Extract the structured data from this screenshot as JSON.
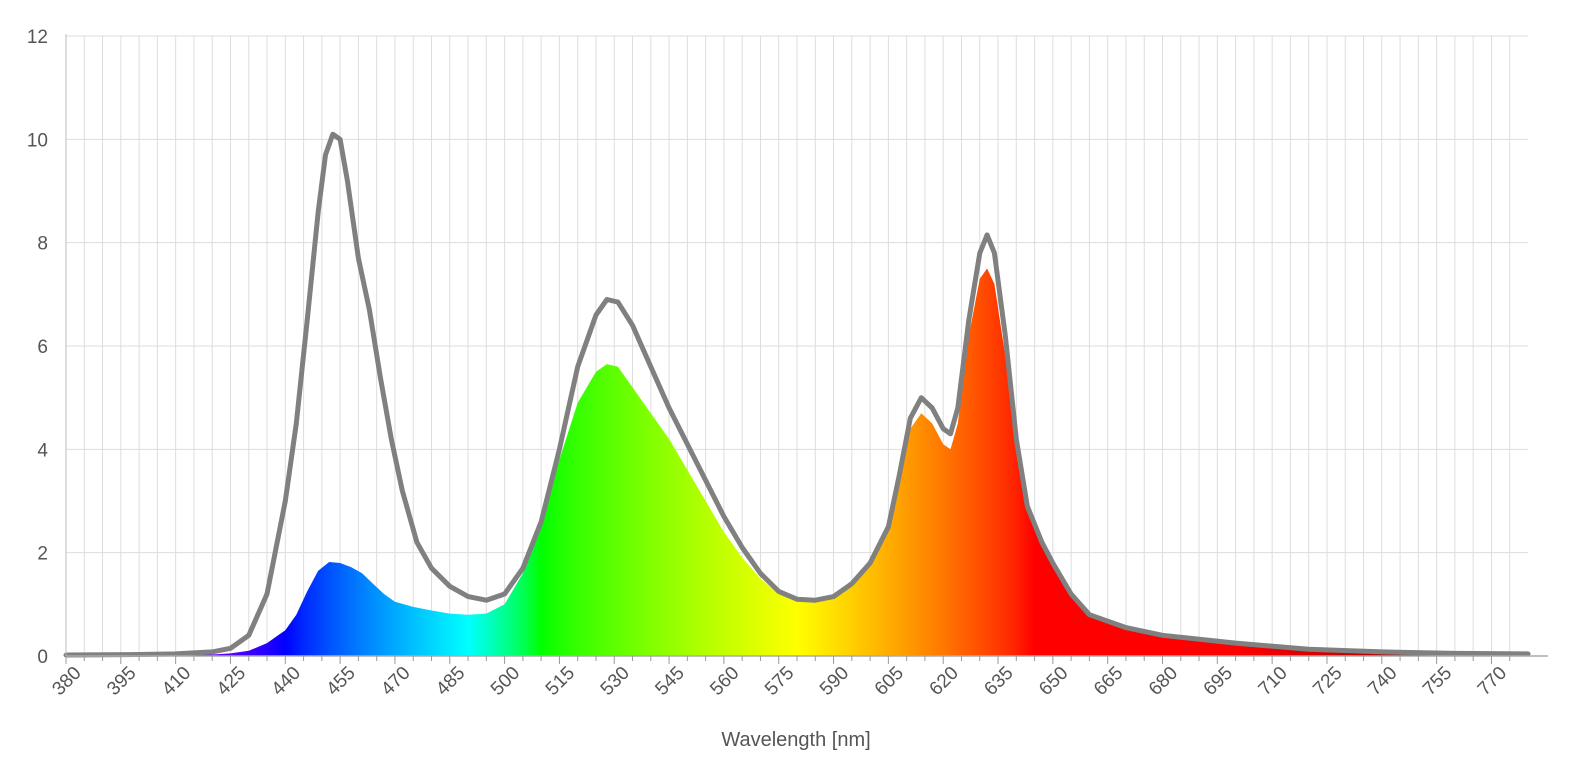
{
  "chart_data": {
    "type": "area",
    "xlabel": "Wavelength [nm]",
    "ylabel": "",
    "xlim": [
      380,
      780
    ],
    "ylim": [
      0,
      12
    ],
    "grid": true,
    "legend": "none",
    "x_ticks": [
      "380",
      "395",
      "410",
      "425",
      "440",
      "455",
      "470",
      "485",
      "500",
      "515",
      "530",
      "545",
      "560",
      "575",
      "590",
      "605",
      "620",
      "635",
      "650",
      "665",
      "680",
      "695",
      "710",
      "725",
      "740",
      "755",
      "770"
    ],
    "y_ticks": [
      "0",
      "2",
      "4",
      "6",
      "8",
      "10",
      "12"
    ],
    "series": [
      {
        "kind": "line",
        "color": "#808080",
        "points": [
          [
            380,
            0.02
          ],
          [
            400,
            0.03
          ],
          [
            410,
            0.04
          ],
          [
            420,
            0.08
          ],
          [
            425,
            0.15
          ],
          [
            430,
            0.4
          ],
          [
            435,
            1.2
          ],
          [
            440,
            3.0
          ],
          [
            443,
            4.5
          ],
          [
            446,
            6.5
          ],
          [
            449,
            8.6
          ],
          [
            451,
            9.7
          ],
          [
            453,
            10.1
          ],
          [
            455,
            10.0
          ],
          [
            457,
            9.2
          ],
          [
            460,
            7.7
          ],
          [
            463,
            6.7
          ],
          [
            466,
            5.4
          ],
          [
            469,
            4.2
          ],
          [
            472,
            3.2
          ],
          [
            476,
            2.2
          ],
          [
            480,
            1.7
          ],
          [
            485,
            1.35
          ],
          [
            490,
            1.15
          ],
          [
            495,
            1.08
          ],
          [
            500,
            1.2
          ],
          [
            505,
            1.7
          ],
          [
            510,
            2.6
          ],
          [
            515,
            4.0
          ],
          [
            520,
            5.6
          ],
          [
            525,
            6.6
          ],
          [
            528,
            6.9
          ],
          [
            531,
            6.85
          ],
          [
            535,
            6.4
          ],
          [
            540,
            5.6
          ],
          [
            545,
            4.8
          ],
          [
            550,
            4.1
          ],
          [
            555,
            3.4
          ],
          [
            560,
            2.7
          ],
          [
            565,
            2.1
          ],
          [
            570,
            1.6
          ],
          [
            575,
            1.25
          ],
          [
            580,
            1.1
          ],
          [
            585,
            1.08
          ],
          [
            590,
            1.15
          ],
          [
            595,
            1.4
          ],
          [
            600,
            1.8
          ],
          [
            605,
            2.5
          ],
          [
            608,
            3.5
          ],
          [
            611,
            4.6
          ],
          [
            614,
            5.0
          ],
          [
            617,
            4.8
          ],
          [
            620,
            4.4
          ],
          [
            622,
            4.3
          ],
          [
            624,
            4.8
          ],
          [
            627,
            6.5
          ],
          [
            630,
            7.8
          ],
          [
            632,
            8.15
          ],
          [
            634,
            7.8
          ],
          [
            637,
            6.2
          ],
          [
            640,
            4.2
          ],
          [
            643,
            2.9
          ],
          [
            647,
            2.2
          ],
          [
            650,
            1.8
          ],
          [
            655,
            1.2
          ],
          [
            660,
            0.8
          ],
          [
            670,
            0.55
          ],
          [
            680,
            0.4
          ],
          [
            700,
            0.25
          ],
          [
            720,
            0.13
          ],
          [
            740,
            0.08
          ],
          [
            760,
            0.05
          ],
          [
            780,
            0.04
          ]
        ]
      },
      {
        "kind": "spectrum-area",
        "points": [
          [
            380,
            0.02
          ],
          [
            400,
            0.02
          ],
          [
            410,
            0.02
          ],
          [
            420,
            0.03
          ],
          [
            425,
            0.05
          ],
          [
            430,
            0.1
          ],
          [
            435,
            0.25
          ],
          [
            440,
            0.5
          ],
          [
            443,
            0.8
          ],
          [
            446,
            1.25
          ],
          [
            449,
            1.65
          ],
          [
            452,
            1.82
          ],
          [
            455,
            1.8
          ],
          [
            458,
            1.72
          ],
          [
            461,
            1.6
          ],
          [
            464,
            1.4
          ],
          [
            467,
            1.2
          ],
          [
            470,
            1.05
          ],
          [
            475,
            0.95
          ],
          [
            480,
            0.88
          ],
          [
            485,
            0.82
          ],
          [
            490,
            0.8
          ],
          [
            495,
            0.82
          ],
          [
            500,
            1.0
          ],
          [
            505,
            1.6
          ],
          [
            510,
            2.6
          ],
          [
            515,
            3.8
          ],
          [
            520,
            4.9
          ],
          [
            525,
            5.5
          ],
          [
            528,
            5.65
          ],
          [
            531,
            5.6
          ],
          [
            535,
            5.2
          ],
          [
            540,
            4.7
          ],
          [
            545,
            4.2
          ],
          [
            550,
            3.6
          ],
          [
            555,
            3.0
          ],
          [
            560,
            2.4
          ],
          [
            565,
            1.9
          ],
          [
            570,
            1.5
          ],
          [
            575,
            1.2
          ],
          [
            580,
            1.08
          ],
          [
            585,
            1.07
          ],
          [
            590,
            1.12
          ],
          [
            595,
            1.35
          ],
          [
            600,
            1.75
          ],
          [
            605,
            2.4
          ],
          [
            608,
            3.4
          ],
          [
            611,
            4.4
          ],
          [
            614,
            4.7
          ],
          [
            617,
            4.5
          ],
          [
            620,
            4.1
          ],
          [
            622,
            4.0
          ],
          [
            624,
            4.5
          ],
          [
            627,
            6.2
          ],
          [
            630,
            7.3
          ],
          [
            632,
            7.5
          ],
          [
            634,
            7.2
          ],
          [
            637,
            5.8
          ],
          [
            640,
            4.0
          ],
          [
            643,
            2.8
          ],
          [
            647,
            2.2
          ],
          [
            650,
            1.8
          ],
          [
            655,
            1.2
          ],
          [
            660,
            0.8
          ],
          [
            670,
            0.55
          ],
          [
            680,
            0.4
          ],
          [
            700,
            0.25
          ],
          [
            720,
            0.13
          ],
          [
            740,
            0.08
          ],
          [
            760,
            0.05
          ],
          [
            780,
            0.04
          ]
        ]
      }
    ]
  }
}
